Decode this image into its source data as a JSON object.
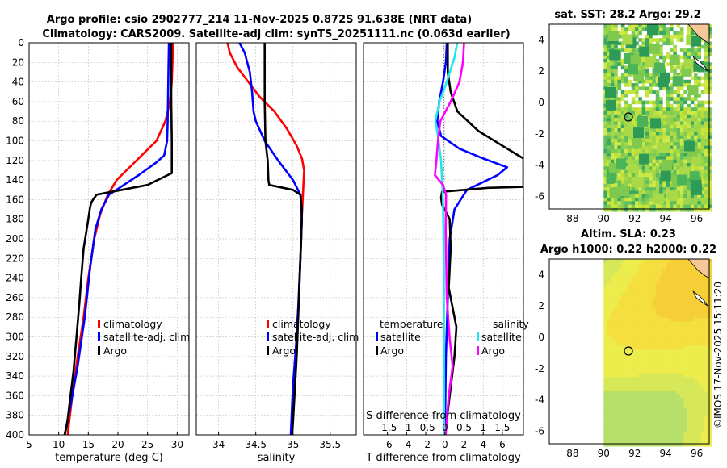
{
  "title": {
    "line1": "Argo profile: csio 2902777_214 11-Nov-2025 0.872S 91.638E (NRT data)",
    "line2": "Climatology: CARS2009. Satellite-adj clim: synTS_20251111.nc (0.063d earlier)"
  },
  "colors": {
    "clim": "#ff0000",
    "sat": "#0000ff",
    "argo": "#000000",
    "sat_s": "#22e5ef",
    "argo_s": "#ff00ff"
  },
  "chart_data": [
    {
      "id": "temperature",
      "type": "line",
      "xlabel": "temperature (deg C)",
      "xlim": [
        5,
        32
      ],
      "xticks": [
        5,
        10,
        15,
        20,
        25,
        30
      ],
      "ylim": [
        0,
        400
      ],
      "yticks": [
        0,
        20,
        40,
        60,
        80,
        100,
        120,
        140,
        160,
        180,
        200,
        220,
        240,
        260,
        280,
        300,
        320,
        340,
        360,
        380,
        400
      ],
      "legend": [
        "climatology",
        "satellite-adj. clim",
        "Argo"
      ],
      "series": [
        {
          "name": "climatology",
          "color": "#ff0000",
          "points": [
            [
              29.3,
              0
            ],
            [
              29.2,
              20
            ],
            [
              29.1,
              40
            ],
            [
              28.8,
              60
            ],
            [
              28.0,
              80
            ],
            [
              26.5,
              100
            ],
            [
              24.0,
              115
            ],
            [
              21.8,
              128
            ],
            [
              19.8,
              140
            ],
            [
              18.3,
              155
            ],
            [
              17.0,
              175
            ],
            [
              16.0,
              200
            ],
            [
              15.0,
              240
            ],
            [
              14.2,
              280
            ],
            [
              13.2,
              320
            ],
            [
              12.3,
              360
            ],
            [
              11.5,
              400
            ]
          ]
        },
        {
          "name": "satellite-adj. clim",
          "color": "#0000ff",
          "points": [
            [
              28.6,
              0
            ],
            [
              28.5,
              40
            ],
            [
              28.4,
              80
            ],
            [
              28.3,
              100
            ],
            [
              27.8,
              115
            ],
            [
              26.5,
              122
            ],
            [
              23.5,
              135
            ],
            [
              21.0,
              145
            ],
            [
              18.5,
              155
            ],
            [
              17.2,
              170
            ],
            [
              16.2,
              190
            ],
            [
              15.3,
              230
            ],
            [
              14.4,
              280
            ],
            [
              13.2,
              330
            ],
            [
              12.0,
              370
            ],
            [
              11.0,
              400
            ]
          ]
        },
        {
          "name": "Argo",
          "color": "#000000",
          "points": [
            [
              29.0,
              0
            ],
            [
              29.0,
              60
            ],
            [
              29.1,
              100
            ],
            [
              29.1,
              133
            ],
            [
              28.4,
              135
            ],
            [
              25.0,
              145
            ],
            [
              16.4,
              155
            ],
            [
              15.8,
              160
            ],
            [
              15.5,
              163
            ],
            [
              15.3,
              168
            ],
            [
              15.0,
              180
            ],
            [
              14.2,
              210
            ],
            [
              13.8,
              240
            ],
            [
              13.5,
              265
            ],
            [
              13.0,
              300
            ],
            [
              12.5,
              335
            ],
            [
              12.0,
              360
            ],
            [
              11.4,
              390
            ],
            [
              11.0,
              400
            ]
          ]
        }
      ]
    },
    {
      "id": "salinity",
      "type": "line",
      "xlabel": "salinity",
      "xlim": [
        33.7,
        35.85
      ],
      "xticks": [
        34,
        34.5,
        35,
        35.5
      ],
      "ylim": [
        0,
        400
      ],
      "legend": [
        "climatology",
        "satellite-adj. clim",
        "Argo"
      ],
      "series": [
        {
          "name": "climatology",
          "color": "#ff0000",
          "points": [
            [
              34.12,
              0
            ],
            [
              34.15,
              10
            ],
            [
              34.25,
              25
            ],
            [
              34.4,
              40
            ],
            [
              34.55,
              55
            ],
            [
              34.75,
              70
            ],
            [
              34.92,
              88
            ],
            [
              35.05,
              105
            ],
            [
              35.12,
              118
            ],
            [
              35.15,
              130
            ],
            [
              35.14,
              145
            ],
            [
              35.12,
              175
            ],
            [
              35.1,
              220
            ],
            [
              35.08,
              260
            ],
            [
              35.05,
              300
            ],
            [
              35.02,
              340
            ],
            [
              34.98,
              400
            ]
          ]
        },
        {
          "name": "satellite-adj. clim",
          "color": "#0000ff",
          "points": [
            [
              34.28,
              0
            ],
            [
              34.35,
              10
            ],
            [
              34.42,
              30
            ],
            [
              34.45,
              50
            ],
            [
              34.47,
              70
            ],
            [
              34.5,
              80
            ],
            [
              34.62,
              100
            ],
            [
              34.8,
              120
            ],
            [
              35.0,
              140
            ],
            [
              35.1,
              155
            ],
            [
              35.12,
              180
            ],
            [
              35.1,
              220
            ],
            [
              35.07,
              270
            ],
            [
              35.04,
              310
            ],
            [
              35.0,
              350
            ],
            [
              34.97,
              400
            ]
          ]
        },
        {
          "name": "Argo",
          "color": "#000000",
          "points": [
            [
              34.62,
              0
            ],
            [
              34.62,
              60
            ],
            [
              34.63,
              100
            ],
            [
              34.66,
              120
            ],
            [
              34.67,
              140
            ],
            [
              34.68,
              145
            ],
            [
              35.0,
              150
            ],
            [
              35.1,
              155
            ],
            [
              35.12,
              170
            ],
            [
              35.11,
              200
            ],
            [
              35.09,
              240
            ],
            [
              35.07,
              280
            ],
            [
              35.05,
              320
            ],
            [
              35.02,
              360
            ],
            [
              34.99,
              400
            ]
          ]
        }
      ]
    },
    {
      "id": "difference",
      "type": "line",
      "xlabel": "T difference from climatology",
      "xlabel_top": "S difference from climatology",
      "xlim": [
        -8.5,
        8.2
      ],
      "xticks": [
        -6,
        -4,
        -2,
        0,
        2,
        4,
        6
      ],
      "s_ticks": [
        -1.5,
        -1,
        -0.5,
        0,
        0.5,
        1,
        1.5
      ],
      "s_tick_labels": [
        "-1.5",
        "-1",
        "-0.5",
        "0",
        "0.5",
        "1",
        "1.5"
      ],
      "s_scale": 4,
      "ylim": [
        0,
        400
      ],
      "legend_titles": [
        "temperature",
        "salinity"
      ],
      "legend": [
        "satellite",
        "Argo",
        "satellite",
        "Argo"
      ],
      "series": [
        {
          "name": "T satellite",
          "color": "#0000ff",
          "points": [
            [
              0.2,
              0
            ],
            [
              0.1,
              20
            ],
            [
              -0.2,
              40
            ],
            [
              -0.6,
              60
            ],
            [
              -0.8,
              80
            ],
            [
              -0.4,
              95
            ],
            [
              1.5,
              108
            ],
            [
              4.0,
              118
            ],
            [
              6.5,
              127
            ],
            [
              5.5,
              135
            ],
            [
              2.3,
              150
            ],
            [
              1.0,
              170
            ],
            [
              0.5,
              200
            ],
            [
              0.3,
              260
            ],
            [
              0.1,
              320
            ],
            [
              0,
              400
            ]
          ]
        },
        {
          "name": "T Argo",
          "color": "#000000",
          "points": [
            [
              0.3,
              0
            ],
            [
              0.3,
              30
            ],
            [
              0.6,
              50
            ],
            [
              1.3,
              70
            ],
            [
              3.5,
              90
            ],
            [
              6.5,
              108
            ],
            [
              8.2,
              118
            ],
            [
              8.2,
              147
            ],
            [
              4.5,
              148
            ],
            [
              -0.3,
              152
            ],
            [
              -0.4,
              158
            ],
            [
              -0.3,
              165
            ],
            [
              0.5,
              180
            ],
            [
              0.6,
              210
            ],
            [
              0.4,
              250
            ],
            [
              1.2,
              290
            ],
            [
              1.0,
              320
            ],
            [
              0.5,
              360
            ],
            [
              0,
              400
            ]
          ]
        },
        {
          "name": "S satellite",
          "color": "#22e5ef",
          "points": [
            [
              0.32,
              0
            ],
            [
              0.25,
              15
            ],
            [
              0.05,
              40
            ],
            [
              -0.14,
              60
            ],
            [
              -0.25,
              80
            ],
            [
              -0.18,
              95
            ],
            [
              -0.1,
              120
            ],
            [
              -0.05,
              160
            ],
            [
              -0.03,
              220
            ],
            [
              -0.02,
              400
            ]
          ]
        },
        {
          "name": "S Argo",
          "color": "#ff00ff",
          "points": [
            [
              0.5,
              0
            ],
            [
              0.47,
              20
            ],
            [
              0.38,
              40
            ],
            [
              0.15,
              60
            ],
            [
              -0.12,
              80
            ],
            [
              -0.18,
              100
            ],
            [
              -0.22,
              120
            ],
            [
              -0.26,
              135
            ],
            [
              -0.05,
              145
            ],
            [
              0.03,
              155
            ],
            [
              0.02,
              190
            ],
            [
              0.05,
              260
            ],
            [
              0.12,
              300
            ],
            [
              0.2,
              330
            ],
            [
              0.1,
              360
            ],
            [
              0.02,
              400
            ]
          ]
        }
      ]
    },
    {
      "id": "sst_map",
      "type": "heatmap",
      "title": "sat. SST: 28.2 Argo: 29.2",
      "xlim": [
        86.5,
        96.8
      ],
      "ylim": [
        -6.8,
        5
      ],
      "xticks": [
        88,
        90,
        92,
        94,
        96
      ],
      "yticks": [
        -6,
        -4,
        -2,
        0,
        2,
        4
      ],
      "marker": [
        91.638,
        -0.872
      ]
    },
    {
      "id": "sla_map",
      "type": "heatmap",
      "title": "Altim. SLA: 0.23",
      "subtitle": "Argo h1000: 0.22 h2000: 0.22",
      "xlim": [
        86.5,
        96.8
      ],
      "ylim": [
        -6.8,
        5
      ],
      "xticks": [
        88,
        90,
        92,
        94,
        96
      ],
      "yticks": [
        -6,
        -4,
        -2,
        0,
        2,
        4
      ],
      "marker": [
        91.638,
        -0.872
      ]
    }
  ],
  "watermark": "©IMOS 17-Nov-2025 15:11:20"
}
